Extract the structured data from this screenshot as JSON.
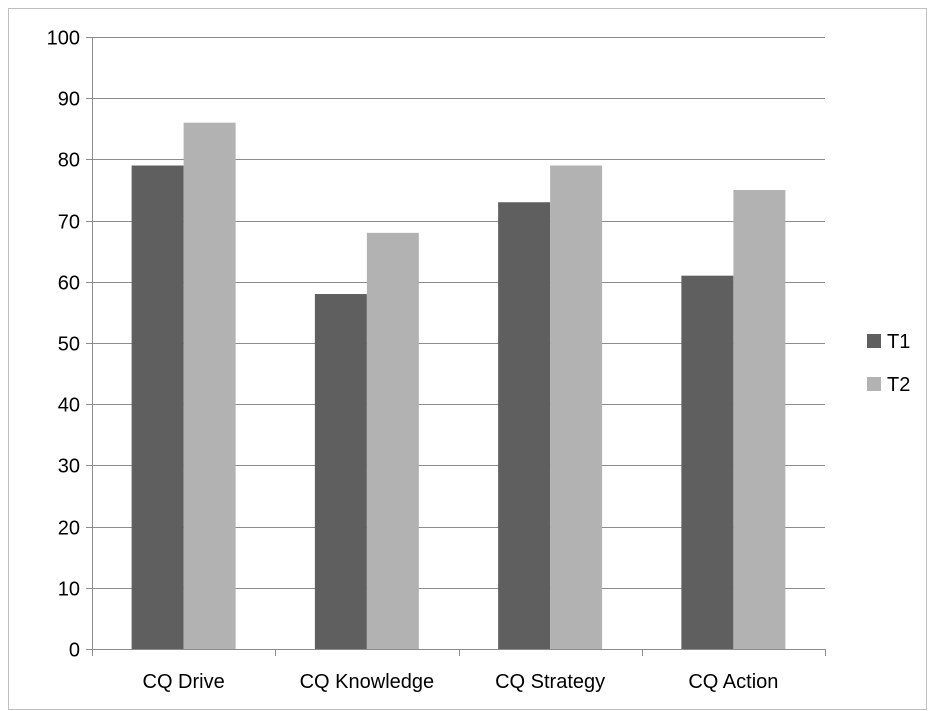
{
  "chart_data": {
    "type": "bar",
    "categories": [
      "CQ Drive",
      "CQ Knowledge",
      "CQ Strategy",
      "CQ Action"
    ],
    "series": [
      {
        "name": "T1",
        "values": [
          79,
          58,
          73,
          61
        ],
        "color": "#5f5f5f"
      },
      {
        "name": "T2",
        "values": [
          86,
          68,
          79,
          75
        ],
        "color": "#b2b2b2"
      }
    ],
    "ylim": [
      0,
      100
    ],
    "yticks": [
      0,
      10,
      20,
      30,
      40,
      50,
      60,
      70,
      80,
      90,
      100
    ],
    "grid": true,
    "legend": "right"
  }
}
